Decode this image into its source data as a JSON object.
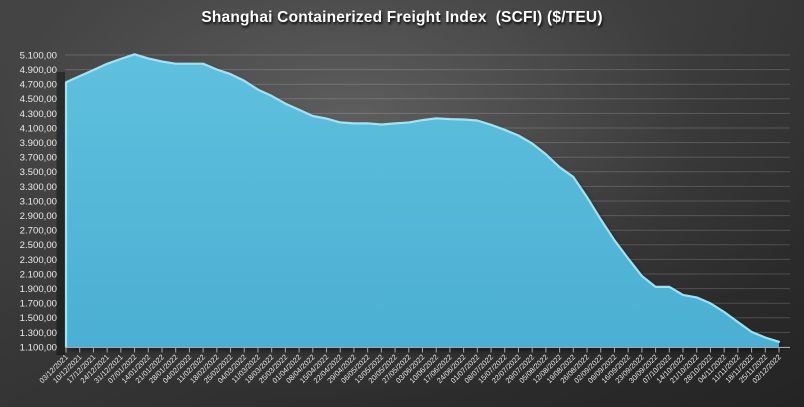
{
  "title_bar": {
    "title": "Shanghai Containerized Freight Index  (SCFI) ($/TEU)"
  },
  "colors": {
    "area_fill_top": "#5fc0de",
    "area_fill_bottom": "#4bafd3",
    "area_edge_highlight": "#a7e7f4",
    "background_center": "#585858",
    "background_edge": "#222222",
    "gridline": "rgba(255,255,255,0.17)",
    "axis": "#a8a8a8",
    "label": "#eaeaea",
    "title": "#ffffff",
    "wall_shadow": "rgba(10,10,10,0.45)"
  },
  "y_axis": {
    "min": 1100,
    "max": 5100,
    "step": 200,
    "tick_labels": [
      "5.100,00",
      "4.900,00",
      "4.700,00",
      "4.500,00",
      "4.300,00",
      "4.100,00",
      "3.900,00",
      "3.700,00",
      "3.500,00",
      "3.300,00",
      "3.100,00",
      "2.900,00",
      "2.700,00",
      "2.500,00",
      "2.300,00",
      "2.100,00",
      "1.900,00",
      "1.700,00",
      "1.500,00",
      "1.300,00",
      "1.100,00"
    ]
  },
  "chart_data": {
    "type": "area",
    "title": "Shanghai Containerized Freight Index  (SCFI) ($/TEU)",
    "xlabel": "",
    "ylabel": "",
    "ylim": [
      1100,
      5100
    ],
    "ytick_step": 200,
    "grid": true,
    "legend": null,
    "x": [
      "03/12/2021",
      "10/12/2021",
      "17/12/2021",
      "24/12/2021",
      "31/12/2021",
      "07/01/2022",
      "14/01/2022",
      "21/01/2022",
      "28/01/2022",
      "04/02/2022",
      "11/02/2022",
      "18/02/2022",
      "25/02/2022",
      "04/03/2022",
      "11/03/2022",
      "18/03/2022",
      "25/03/2022",
      "01/04/2022",
      "08/04/2022",
      "15/04/2022",
      "22/04/2022",
      "29/04/2022",
      "06/05/2022",
      "13/05/2022",
      "20/05/2022",
      "27/05/2022",
      "03/06/2022",
      "10/06/2022",
      "17/06/2022",
      "24/06/2022",
      "01/07/2022",
      "08/07/2022",
      "15/07/2022",
      "22/07/2022",
      "29/07/2022",
      "05/08/2022",
      "12/08/2022",
      "19/08/2022",
      "26/08/2022",
      "02/09/2022",
      "09/09/2022",
      "16/09/2022",
      "23/09/2022",
      "30/09/2022",
      "07/10/2022",
      "14/10/2022",
      "21/10/2022",
      "28/10/2022",
      "04/11/2022",
      "11/11/2022",
      "18/11/2022",
      "25/11/2022",
      "02/12/2022"
    ],
    "values": [
      4727,
      4811,
      4895,
      4980,
      5047,
      5110,
      5053,
      5011,
      4981,
      4981,
      4981,
      4901,
      4839,
      4746,
      4626,
      4540,
      4434,
      4349,
      4264,
      4229,
      4177,
      4163,
      4164,
      4148,
      4163,
      4175,
      4208,
      4233,
      4222,
      4216,
      4203,
      4144,
      4075,
      3997,
      3888,
      3740,
      3563,
      3430,
      3154,
      2848,
      2562,
      2313,
      2072,
      1923,
      1924,
      1814,
      1779,
      1698,
      1579,
      1443,
      1307,
      1230,
      1171
    ]
  }
}
